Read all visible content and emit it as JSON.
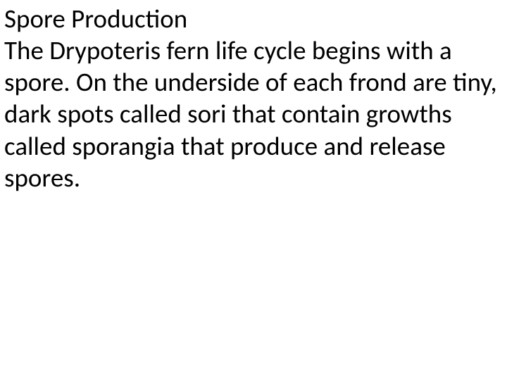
{
  "slide": {
    "heading": "Spore Production",
    "body": "The Drypoteris fern life cycle begins with a spore. On the underside of each frond are tiny, dark spots called sori that contain growths called sporangia that produce and release spores.",
    "text_color": "#000000",
    "background_color": "#ffffff",
    "font_family": "Calibri",
    "font_size_pt": 28,
    "font_weight": 400
  }
}
